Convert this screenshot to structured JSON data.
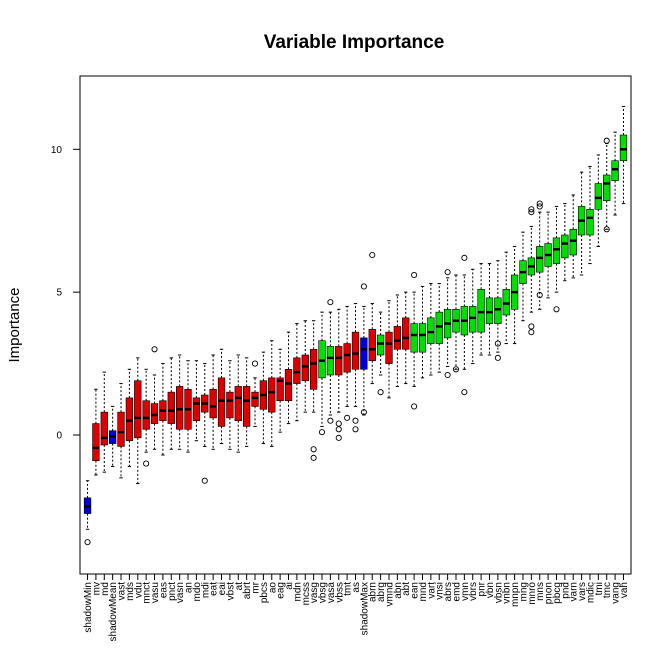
{
  "chart_data": {
    "type": "boxplot",
    "title": "Variable Importance",
    "xlabel": "",
    "ylabel": "Importance",
    "ylim": [
      -4.2,
      11.9
    ],
    "yticks": [
      0,
      5,
      10
    ],
    "grid": false,
    "legend": "none",
    "colors": {
      "rejected": "#dd0000",
      "confirmed": "#00dd00",
      "shadow": "#0000dd",
      "outline": "#000000"
    },
    "categories": [
      "shadowMin",
      "mv",
      "md",
      "shadowMean",
      "vast",
      "mds",
      "vdu",
      "mnct",
      "vasu",
      "eas",
      "pnct",
      "vasn",
      "an",
      "mdo",
      "mdi",
      "eat",
      "eai",
      "vbst",
      "at",
      "abrt",
      "mr",
      "pbcs",
      "ao",
      "eag",
      "ai",
      "mdn",
      "mcss",
      "vasg",
      "vbsg",
      "vasa",
      "vbss",
      "tmt",
      "as",
      "shadowMax",
      "abrn",
      "abrg",
      "vmnd",
      "abn",
      "abt",
      "ean",
      "mnd",
      "vart",
      "vnsi",
      "abrs",
      "emd",
      "vmn",
      "vbrs",
      "pnr",
      "vbn",
      "vbsn",
      "vnbn",
      "mnpn",
      "mng",
      "mnro",
      "mns",
      "pnon",
      "pbcg",
      "pnd",
      "varn",
      "vars",
      "mdic",
      "tmi",
      "tmc",
      "vang",
      "vah"
    ],
    "group": [
      "shadow",
      "rejected",
      "rejected",
      "shadow",
      "rejected",
      "rejected",
      "rejected",
      "rejected",
      "rejected",
      "rejected",
      "rejected",
      "rejected",
      "rejected",
      "rejected",
      "rejected",
      "rejected",
      "rejected",
      "rejected",
      "rejected",
      "rejected",
      "rejected",
      "rejected",
      "rejected",
      "rejected",
      "rejected",
      "rejected",
      "rejected",
      "rejected",
      "confirmed",
      "confirmed",
      "rejected",
      "rejected",
      "rejected",
      "shadow",
      "rejected",
      "confirmed",
      "rejected",
      "rejected",
      "rejected",
      "confirmed",
      "confirmed",
      "confirmed",
      "confirmed",
      "confirmed",
      "confirmed",
      "confirmed",
      "confirmed",
      "confirmed",
      "confirmed",
      "confirmed",
      "confirmed",
      "confirmed",
      "confirmed",
      "confirmed",
      "confirmed",
      "confirmed",
      "confirmed",
      "confirmed",
      "confirmed",
      "confirmed",
      "confirmed",
      "confirmed",
      "confirmed",
      "confirmed",
      "confirmed"
    ],
    "boxes": [
      {
        "min": -3.3,
        "q1": -2.75,
        "median": -2.5,
        "q3": -2.2,
        "max": -1.6,
        "outliers": [
          -3.75
        ]
      },
      {
        "min": -1.4,
        "q1": -0.9,
        "median": -0.45,
        "q3": 0.4,
        "max": 1.6,
        "outliers": []
      },
      {
        "min": -1.3,
        "q1": -0.35,
        "median": -0.1,
        "q3": 0.8,
        "max": 2.2,
        "outliers": []
      },
      {
        "min": -1.1,
        "q1": -0.3,
        "median": -0.05,
        "q3": 0.15,
        "max": 1.0,
        "outliers": []
      },
      {
        "min": -1.5,
        "q1": -0.4,
        "median": 0.1,
        "q3": 0.8,
        "max": 1.8,
        "outliers": []
      },
      {
        "min": -1.1,
        "q1": -0.2,
        "median": 0.5,
        "q3": 1.3,
        "max": 2.3,
        "outliers": []
      },
      {
        "min": -1.7,
        "q1": -0.1,
        "median": 0.6,
        "q3": 1.9,
        "max": 2.7,
        "outliers": []
      },
      {
        "min": -0.6,
        "q1": 0.2,
        "median": 0.6,
        "q3": 1.2,
        "max": 2.3,
        "outliers": [
          -1.0
        ]
      },
      {
        "min": -0.5,
        "q1": 0.4,
        "median": 0.7,
        "q3": 1.1,
        "max": 2.1,
        "outliers": [
          3.0
        ]
      },
      {
        "min": -0.7,
        "q1": 0.5,
        "median": 0.85,
        "q3": 1.2,
        "max": 2.5,
        "outliers": []
      },
      {
        "min": -0.5,
        "q1": 0.4,
        "median": 0.85,
        "q3": 1.5,
        "max": 2.7,
        "outliers": []
      },
      {
        "min": -0.5,
        "q1": 0.2,
        "median": 0.9,
        "q3": 1.7,
        "max": 2.8,
        "outliers": []
      },
      {
        "min": -0.6,
        "q1": 0.2,
        "median": 0.9,
        "q3": 1.6,
        "max": 2.6,
        "outliers": []
      },
      {
        "min": -0.2,
        "q1": 0.5,
        "median": 1.1,
        "q3": 1.3,
        "max": 2.6,
        "outliers": []
      },
      {
        "min": -0.4,
        "q1": 0.8,
        "median": 1.1,
        "q3": 1.4,
        "max": 2.5,
        "outliers": [
          -1.6
        ]
      },
      {
        "min": -0.5,
        "q1": 0.6,
        "median": 1.0,
        "q3": 1.6,
        "max": 2.8,
        "outliers": []
      },
      {
        "min": -0.3,
        "q1": 0.3,
        "median": 1.2,
        "q3": 2.0,
        "max": 3.0,
        "outliers": []
      },
      {
        "min": -0.5,
        "q1": 0.6,
        "median": 1.2,
        "q3": 1.5,
        "max": 2.6,
        "outliers": []
      },
      {
        "min": -0.6,
        "q1": 0.5,
        "median": 1.3,
        "q3": 1.7,
        "max": 2.8,
        "outliers": []
      },
      {
        "min": -0.4,
        "q1": 0.3,
        "median": 1.2,
        "q3": 1.7,
        "max": 2.7,
        "outliers": []
      },
      {
        "min": 0.3,
        "q1": 1.0,
        "median": 1.3,
        "q3": 1.5,
        "max": 2.0,
        "outliers": [
          2.5
        ]
      },
      {
        "min": -0.3,
        "q1": 0.9,
        "median": 1.4,
        "q3": 1.9,
        "max": 2.9,
        "outliers": []
      },
      {
        "min": -0.4,
        "q1": 0.8,
        "median": 1.5,
        "q3": 2.0,
        "max": 3.3,
        "outliers": []
      },
      {
        "min": 0.1,
        "q1": 1.2,
        "median": 1.9,
        "q3": 2.0,
        "max": 3.0,
        "outliers": []
      },
      {
        "min": 0.4,
        "q1": 1.2,
        "median": 1.8,
        "q3": 2.3,
        "max": 3.6,
        "outliers": []
      },
      {
        "min": 0.5,
        "q1": 1.8,
        "median": 2.2,
        "q3": 2.7,
        "max": 3.9,
        "outliers": []
      },
      {
        "min": 0.8,
        "q1": 1.9,
        "median": 2.4,
        "q3": 2.8,
        "max": 4.0,
        "outliers": []
      },
      {
        "min": 0.8,
        "q1": 1.6,
        "median": 2.5,
        "q3": 3.0,
        "max": 4.0,
        "outliers": [
          -0.5,
          -0.8
        ]
      },
      {
        "min": 0.3,
        "q1": 2.0,
        "median": 2.6,
        "q3": 3.3,
        "max": 4.3,
        "outliers": [
          0.1
        ]
      },
      {
        "min": 0.7,
        "q1": 2.1,
        "median": 2.7,
        "q3": 3.1,
        "max": 4.3,
        "outliers": [
          0.5,
          4.65
        ]
      },
      {
        "min": 0.8,
        "q1": 2.1,
        "median": 2.7,
        "q3": 3.1,
        "max": 4.4,
        "outliers": [
          0.2,
          -0.1,
          0.4
        ]
      },
      {
        "min": 1.0,
        "q1": 2.2,
        "median": 2.8,
        "q3": 3.2,
        "max": 4.5,
        "outliers": [
          0.6
        ]
      },
      {
        "min": 1.0,
        "q1": 2.3,
        "median": 2.85,
        "q3": 3.6,
        "max": 4.6,
        "outliers": [
          0.5,
          0.2
        ]
      },
      {
        "min": 0.7,
        "q1": 2.3,
        "median": 3.0,
        "q3": 3.4,
        "max": 4.5,
        "outliers": [
          0.8,
          5.2
        ]
      },
      {
        "min": 1.8,
        "q1": 2.6,
        "median": 3.0,
        "q3": 3.7,
        "max": 4.6,
        "outliers": [
          6.3
        ]
      },
      {
        "min": 2.1,
        "q1": 2.8,
        "median": 3.2,
        "q3": 3.5,
        "max": 4.3,
        "outliers": [
          1.5
        ]
      },
      {
        "min": 1.3,
        "q1": 2.5,
        "median": 3.2,
        "q3": 3.6,
        "max": 4.7,
        "outliers": []
      },
      {
        "min": 1.7,
        "q1": 3.0,
        "median": 3.3,
        "q3": 3.8,
        "max": 4.9,
        "outliers": []
      },
      {
        "min": 1.8,
        "q1": 3.0,
        "median": 3.4,
        "q3": 4.1,
        "max": 5.0,
        "outliers": []
      },
      {
        "min": 1.7,
        "q1": 2.9,
        "median": 3.5,
        "q3": 3.9,
        "max": 5.0,
        "outliers": [
          1.0,
          5.6
        ]
      },
      {
        "min": 2.0,
        "q1": 2.9,
        "median": 3.5,
        "q3": 3.9,
        "max": 5.2,
        "outliers": []
      },
      {
        "min": 2.1,
        "q1": 3.2,
        "median": 3.6,
        "q3": 4.1,
        "max": 5.3,
        "outliers": []
      },
      {
        "min": 2.2,
        "q1": 3.2,
        "median": 3.8,
        "q3": 4.3,
        "max": 5.3,
        "outliers": []
      },
      {
        "min": 2.4,
        "q1": 3.4,
        "median": 3.9,
        "q3": 4.4,
        "max": 5.5,
        "outliers": [
          2.1,
          5.7
        ]
      },
      {
        "min": 2.3,
        "q1": 3.6,
        "median": 4.0,
        "q3": 4.4,
        "max": 5.6,
        "outliers": [
          2.3
        ]
      },
      {
        "min": 2.3,
        "q1": 3.5,
        "median": 4.0,
        "q3": 4.5,
        "max": 5.6,
        "outliers": [
          1.5,
          6.2
        ]
      },
      {
        "min": 2.5,
        "q1": 3.6,
        "median": 4.1,
        "q3": 4.5,
        "max": 5.8,
        "outliers": []
      },
      {
        "min": 2.8,
        "q1": 3.6,
        "median": 4.3,
        "q3": 5.1,
        "max": 6.0,
        "outliers": []
      },
      {
        "min": 2.8,
        "q1": 3.9,
        "median": 4.3,
        "q3": 4.8,
        "max": 6.0,
        "outliers": []
      },
      {
        "min": 2.9,
        "q1": 3.9,
        "median": 4.4,
        "q3": 4.8,
        "max": 6.1,
        "outliers": [
          3.2,
          2.7
        ]
      },
      {
        "min": 3.2,
        "q1": 4.2,
        "median": 4.6,
        "q3": 5.1,
        "max": 6.4,
        "outliers": []
      },
      {
        "min": 3.2,
        "q1": 4.4,
        "median": 5.0,
        "q3": 5.6,
        "max": 6.6,
        "outliers": []
      },
      {
        "min": 4.0,
        "q1": 5.3,
        "median": 5.7,
        "q3": 6.1,
        "max": 7.1,
        "outliers": []
      },
      {
        "min": 4.3,
        "q1": 5.6,
        "median": 5.9,
        "q3": 6.2,
        "max": 7.3,
        "outliers": [
          3.8,
          3.6,
          7.9,
          7.8
        ]
      },
      {
        "min": 4.4,
        "q1": 5.7,
        "median": 6.2,
        "q3": 6.6,
        "max": 7.8,
        "outliers": [
          4.9,
          8.1,
          8.0
        ]
      },
      {
        "min": 4.8,
        "q1": 5.9,
        "median": 6.3,
        "q3": 6.7,
        "max": 7.8,
        "outliers": []
      },
      {
        "min": 5.0,
        "q1": 6.0,
        "median": 6.5,
        "q3": 6.9,
        "max": 8.0,
        "outliers": [
          4.4
        ]
      },
      {
        "min": 5.4,
        "q1": 6.2,
        "median": 6.7,
        "q3": 7.0,
        "max": 8.1,
        "outliers": []
      },
      {
        "min": 5.5,
        "q1": 6.3,
        "median": 6.8,
        "q3": 7.2,
        "max": 8.4,
        "outliers": []
      },
      {
        "min": 5.6,
        "q1": 7.0,
        "median": 7.5,
        "q3": 8.0,
        "max": 9.2,
        "outliers": []
      },
      {
        "min": 6.0,
        "q1": 7.0,
        "median": 7.6,
        "q3": 7.9,
        "max": 9.4,
        "outliers": []
      },
      {
        "min": 6.6,
        "q1": 7.9,
        "median": 8.3,
        "q3": 8.8,
        "max": 9.8,
        "outliers": []
      },
      {
        "min": 7.2,
        "q1": 8.2,
        "median": 8.8,
        "q3": 9.1,
        "max": 10.2,
        "outliers": [
          7.2,
          10.3
        ]
      },
      {
        "min": 7.7,
        "q1": 8.9,
        "median": 9.3,
        "q3": 9.6,
        "max": 10.6,
        "outliers": []
      },
      {
        "min": 8.1,
        "q1": 9.6,
        "median": 10.0,
        "q3": 10.5,
        "max": 11.5,
        "outliers": []
      }
    ]
  }
}
